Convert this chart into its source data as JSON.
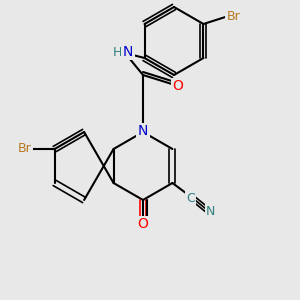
{
  "background_color": "#e8e8e8",
  "bond_color": "#000000",
  "bond_width": 1.5,
  "atom_colors": {
    "N": "#0000cc",
    "O": "#ff0000",
    "Br_top": "#b87820",
    "Br_bottom": "#b87820",
    "C_cyano": "#2f8080",
    "N_cyano": "#2f8080",
    "H": "#2f8080"
  },
  "font_size": 9
}
